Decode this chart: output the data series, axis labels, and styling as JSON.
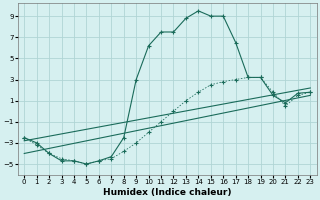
{
  "xlabel": "Humidex (Indice chaleur)",
  "bg_color": "#d6f0f0",
  "grid_color": "#b0d5d5",
  "line_color": "#1a6b5a",
  "xlim": [
    -0.5,
    23.5
  ],
  "ylim": [
    -6,
    10.2
  ],
  "yticks": [
    -5,
    -3,
    -1,
    1,
    3,
    5,
    7,
    9
  ],
  "xticks": [
    0,
    1,
    2,
    3,
    4,
    5,
    6,
    7,
    8,
    9,
    10,
    11,
    12,
    13,
    14,
    15,
    16,
    17,
    18,
    19,
    20,
    21,
    22,
    23
  ],
  "series1_x": [
    0,
    1,
    2,
    3,
    4,
    5,
    6,
    7,
    8,
    9,
    10,
    11,
    12,
    13,
    14,
    15,
    16,
    17,
    18,
    19,
    20,
    21,
    22,
    23
  ],
  "series1_y": [
    -2.5,
    -3.0,
    -4.0,
    -4.7,
    -4.7,
    -5.0,
    -4.7,
    -4.3,
    -2.5,
    3.0,
    6.2,
    7.5,
    7.5,
    8.8,
    9.5,
    9.0,
    9.0,
    6.5,
    3.2,
    3.2,
    1.5,
    0.8,
    1.7,
    1.8
  ],
  "series2_x": [
    0,
    1,
    2,
    3,
    4,
    5,
    6,
    7,
    8,
    9,
    10,
    11,
    12,
    13,
    14,
    15,
    16,
    17,
    18,
    19,
    20,
    21,
    22,
    23
  ],
  "series2_y": [
    -2.5,
    -3.2,
    -4.0,
    -4.5,
    -4.7,
    -5.0,
    -4.7,
    -4.5,
    -3.8,
    -3.0,
    -2.0,
    -1.0,
    0.0,
    1.0,
    1.8,
    2.5,
    2.8,
    3.0,
    3.2,
    3.2,
    1.8,
    0.5,
    1.5,
    1.8
  ],
  "series3_x": [
    0,
    23
  ],
  "series3_y": [
    -2.8,
    2.2
  ],
  "series4_x": [
    0,
    23
  ],
  "series4_y": [
    -4.0,
    1.5
  ]
}
